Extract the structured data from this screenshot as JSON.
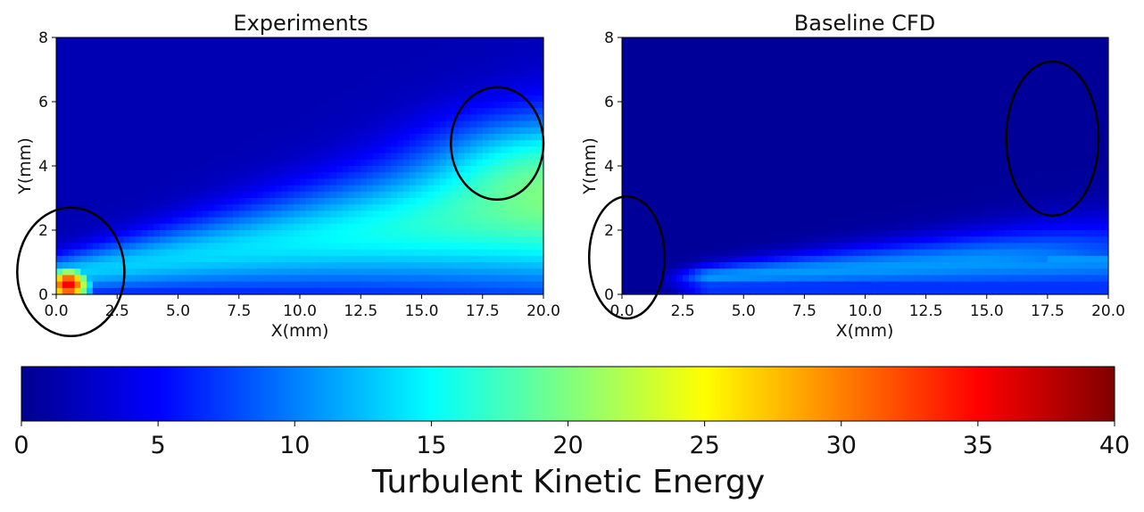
{
  "chart_data": [
    {
      "type": "heatmap",
      "title": "Experiments",
      "xlabel": "X(mm)",
      "ylabel": "Y(mm)",
      "xlim": [
        0,
        20
      ],
      "ylim": [
        0,
        8
      ],
      "x_ticks": [
        "0.0",
        "2.5",
        "5.0",
        "7.5",
        "10.0",
        "12.5",
        "15.0",
        "17.5",
        "20.0"
      ],
      "y_ticks": [
        "0",
        "2",
        "4",
        "6",
        "8"
      ],
      "field": {
        "description": "jet shear layer TKE field",
        "background_value": 2,
        "layer_center_at_x0_mm": 0.6,
        "layer_center_at_x20_mm": 2.7,
        "layer_width_at_x0_mm": 0.6,
        "layer_width_at_x20_mm": 2.6,
        "layer_peak_value": 13,
        "layer_peak_at_x20_value": 19,
        "nozzle_hotspot": {
          "x_mm": 0.5,
          "y_mm": 0.3,
          "peak_value": 36
        },
        "lower_core_value": 8
      },
      "annotations": [
        {
          "shape": "ellipse",
          "cx_mm": 0.6,
          "cy_mm": 0.7,
          "rx_mm": 2.2,
          "ry_mm": 2.0
        },
        {
          "shape": "ellipse",
          "cx_mm": 18.1,
          "cy_mm": 4.7,
          "rx_mm": 1.9,
          "ry_mm": 1.75
        }
      ]
    },
    {
      "type": "heatmap",
      "title": "Baseline CFD",
      "xlabel": "X(mm)",
      "ylabel": "Y(mm)",
      "xlim": [
        0,
        20
      ],
      "ylim": [
        0,
        8
      ],
      "x_ticks": [
        "0.0",
        "2.5",
        "5.0",
        "7.5",
        "10.0",
        "12.5",
        "15.0",
        "17.5",
        "20.0"
      ],
      "y_ticks": [
        "0",
        "2",
        "4",
        "6",
        "8"
      ],
      "field": {
        "description": "thin simulated shear layer TKE field",
        "background_value": 1,
        "layer_center_at_x0_mm": 0.4,
        "layer_center_at_x20_mm": 1.2,
        "layer_width_at_x0_mm": 0.2,
        "layer_width_at_x20_mm": 1.2,
        "layer_peak_value": 11,
        "layer_start_x_mm": 1.5,
        "lower_core_value": 7
      },
      "annotations": [
        {
          "shape": "ellipse",
          "cx_mm": 0.2,
          "cy_mm": 1.15,
          "rx_mm": 1.55,
          "ry_mm": 1.9
        },
        {
          "shape": "ellipse",
          "cx_mm": 17.7,
          "cy_mm": 4.85,
          "rx_mm": 1.9,
          "ry_mm": 2.4
        }
      ]
    }
  ],
  "colorbar": {
    "colormap": "jet",
    "vmin": 0,
    "vmax": 40,
    "ticks": [
      "0",
      "5",
      "10",
      "15",
      "20",
      "25",
      "30",
      "35",
      "40"
    ],
    "tick_values": [
      0,
      5,
      10,
      15,
      20,
      25,
      30,
      35,
      40
    ],
    "label": "Turbulent Kinetic Energy"
  }
}
